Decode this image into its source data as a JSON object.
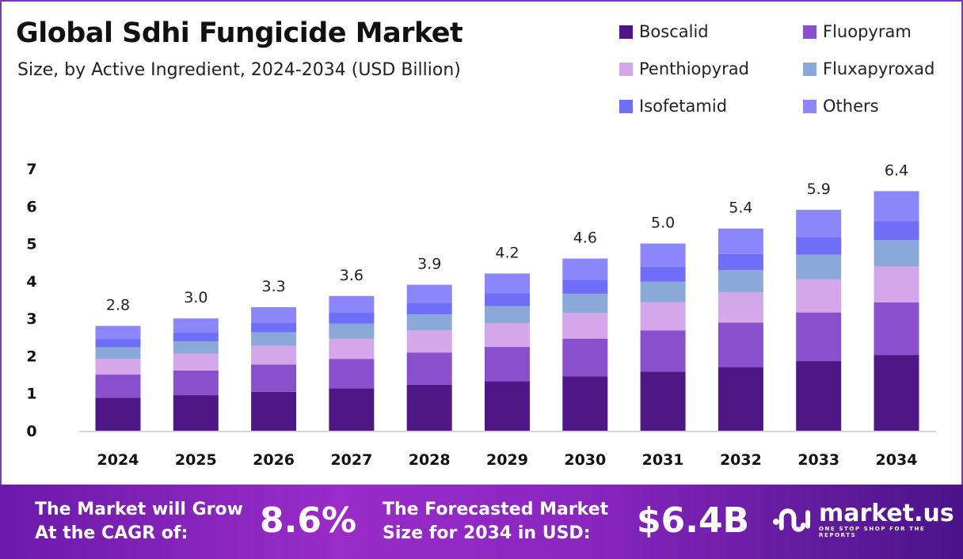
{
  "chart_data": {
    "type": "bar",
    "stacked": true,
    "title": "Global Sdhi Fungicide Market",
    "subtitle": "Size, by Active Ingredient, 2024-2034 (USD Billion)",
    "categories": [
      "2024",
      "2025",
      "2026",
      "2027",
      "2028",
      "2029",
      "2030",
      "2031",
      "2032",
      "2033",
      "2034"
    ],
    "totals": [
      "2.8",
      "3.0",
      "3.3",
      "3.6",
      "3.9",
      "4.2",
      "4.6",
      "5.0",
      "5.4",
      "5.9",
      "6.4"
    ],
    "ylim": [
      0,
      7
    ],
    "yticks": [
      "0",
      "1",
      "2",
      "3",
      "4",
      "5",
      "6",
      "7"
    ],
    "grid": false,
    "legend_position": "top-right",
    "series": [
      {
        "name": "Boscalid",
        "color": "#4e1785",
        "values": [
          0.88,
          0.95,
          1.04,
          1.13,
          1.23,
          1.32,
          1.45,
          1.58,
          1.7,
          1.86,
          2.02
        ]
      },
      {
        "name": "Fluopyram",
        "color": "#8a4fcc",
        "values": [
          0.62,
          0.66,
          0.73,
          0.79,
          0.86,
          0.92,
          1.01,
          1.1,
          1.19,
          1.3,
          1.41
        ]
      },
      {
        "name": "Penthiopyrad",
        "color": "#d4a6ea",
        "values": [
          0.42,
          0.45,
          0.5,
          0.54,
          0.59,
          0.63,
          0.69,
          0.75,
          0.81,
          0.89,
          0.96
        ]
      },
      {
        "name": "Fluxapyroxad",
        "color": "#8aa8d8",
        "values": [
          0.31,
          0.33,
          0.36,
          0.4,
          0.43,
          0.46,
          0.51,
          0.55,
          0.59,
          0.65,
          0.7
        ]
      },
      {
        "name": "Isofetamid",
        "color": "#6f6ef8",
        "values": [
          0.22,
          0.24,
          0.26,
          0.29,
          0.31,
          0.34,
          0.37,
          0.4,
          0.43,
          0.47,
          0.51
        ]
      },
      {
        "name": "Others",
        "color": "#8b87fa",
        "values": [
          0.35,
          0.37,
          0.41,
          0.45,
          0.48,
          0.53,
          0.57,
          0.62,
          0.68,
          0.73,
          0.8
        ]
      }
    ]
  },
  "footer": {
    "cagr_label": "The Market will Grow At the CAGR of:",
    "cagr_value": "8.6%",
    "forecast_label": "The Forecasted Market Size for 2034 in USD:",
    "forecast_value": "$6.4B",
    "logo_name": "market.us",
    "logo_tagline": "ONE STOP SHOP FOR THE REPORTS"
  }
}
